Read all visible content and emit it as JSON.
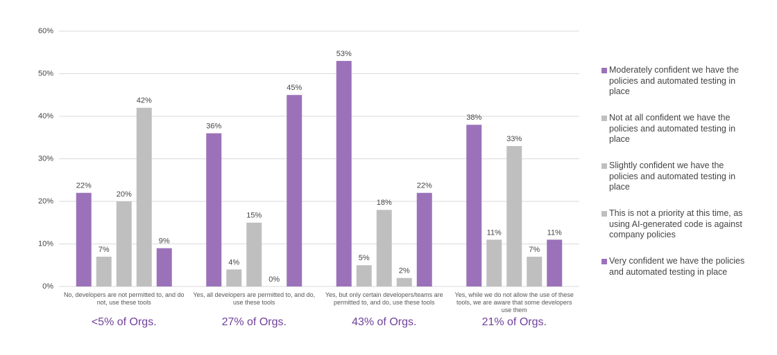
{
  "chart_data": {
    "type": "bar",
    "categories": [
      "No, developers are not permitted to, and do not, use these tools",
      "Yes, all developers are permitted to, and do, use these tools",
      "Yes, but only certain developers/teams are permitted to, and do, use these tools",
      "Yes, while we do not allow the use of these tools, we are aware that some developers use them"
    ],
    "annotations": [
      "<5% of Orgs.",
      "27% of Orgs.",
      "43% of Orgs.",
      "21% of Orgs."
    ],
    "series": [
      {
        "name": "Moderately confident  we have the policies and automated testing in place",
        "color": "#9b72b9",
        "values": [
          22,
          36,
          53,
          38
        ],
        "value_labels": [
          "22%",
          "36%",
          "53%",
          "38%"
        ]
      },
      {
        "name": "Not at all confident  we have the policies and automated testing in place",
        "color": "#bfbfbf",
        "values": [
          7,
          4,
          5,
          11
        ],
        "value_labels": [
          "7%",
          "4%",
          "5%",
          "11%"
        ]
      },
      {
        "name": "Slightly confident  we have the policies and automated testing in place",
        "color": "#bfbfbf",
        "values": [
          20,
          15,
          18,
          33
        ],
        "value_labels": [
          "20%",
          "15%",
          "18%",
          "33%"
        ]
      },
      {
        "name": "This is not a priority at this time, as using AI-generated code is against company policies",
        "color": "#bfbfbf",
        "values": [
          42,
          0,
          2,
          7
        ],
        "value_labels": [
          "42%",
          "0%",
          "2%",
          "7%"
        ]
      },
      {
        "name": "Very confident  we have the policies and automated testing in place",
        "color": "#9b72b9",
        "values": [
          9,
          45,
          22,
          11
        ],
        "value_labels": [
          "9%",
          "45%",
          "22%",
          "11%"
        ]
      }
    ],
    "ylim": [
      0,
      60
    ],
    "yticks": [
      {
        "value": 0,
        "label": "0%"
      },
      {
        "value": 10,
        "label": "10%"
      },
      {
        "value": 20,
        "label": "20%"
      },
      {
        "value": 30,
        "label": "30%"
      },
      {
        "value": 40,
        "label": "40%"
      },
      {
        "value": 50,
        "label": "50%"
      },
      {
        "value": 60,
        "label": "60%"
      }
    ],
    "grid": true,
    "legend": "right"
  }
}
